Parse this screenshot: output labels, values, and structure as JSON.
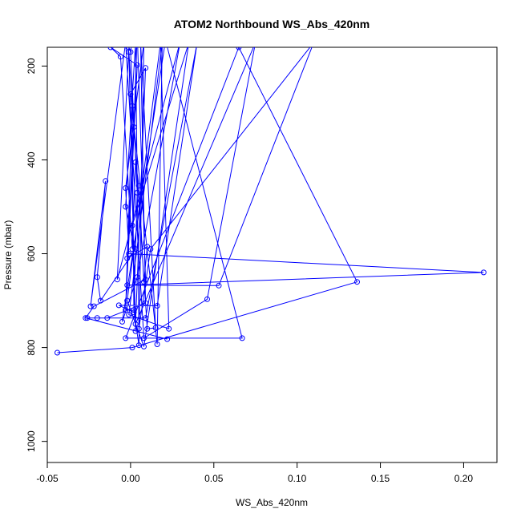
{
  "chart_data": {
    "type": "line",
    "title": "ATOM2 Northbound WS_Abs_420nm",
    "xlabel": "WS_Abs_420nm",
    "ylabel": "Pressure (mbar)",
    "xlim": [
      -0.05,
      0.22
    ],
    "ylim": [
      1045,
      160
    ],
    "y_reversed": true,
    "grid": false,
    "x_ticks": [
      -0.05,
      0.0,
      0.05,
      0.1,
      0.15,
      0.2
    ],
    "x_tick_labels": [
      "-0.05",
      "0.00",
      "0.05",
      "0.10",
      "0.15",
      "0.20"
    ],
    "y_ticks": [
      200,
      400,
      600,
      800,
      1000
    ],
    "y_tick_labels": [
      "200",
      "400",
      "600",
      "800",
      "1000"
    ],
    "series": [
      {
        "color": "#0000ff",
        "marker": "open-circle",
        "points": [
          [
            -0.044,
            811
          ],
          [
            0.001,
            800
          ],
          [
            0.136,
            660
          ],
          [
            0.065,
            160
          ],
          [
            -0.003,
            780
          ],
          [
            0.067,
            780
          ],
          [
            0.021,
            145
          ],
          [
            -0.005,
            745
          ],
          [
            0.004,
            650
          ],
          [
            0.03,
            145
          ],
          [
            -0.008,
            655
          ],
          [
            -0.001,
            160
          ],
          [
            0.0,
            170
          ],
          [
            0.004,
            470
          ],
          [
            0.002,
            720
          ],
          [
            0.005,
            795
          ],
          [
            0.008,
            150
          ],
          [
            -0.003,
            460
          ],
          [
            -0.001,
            600
          ],
          [
            0.212,
            640
          ],
          [
            -0.002,
            667
          ],
          [
            0.053,
            668
          ],
          [
            0.11,
            150
          ],
          [
            0.012,
            590
          ],
          [
            0.005,
            760
          ],
          [
            0.003,
            150
          ],
          [
            -0.003,
            500
          ],
          [
            0.003,
            590
          ],
          [
            -0.018,
            700
          ],
          [
            -0.02,
            650
          ],
          [
            -0.015,
            445
          ],
          [
            -0.024,
            712
          ],
          [
            -0.003,
            150
          ],
          [
            0.008,
            780
          ],
          [
            0.046,
            697
          ],
          [
            0.075,
            150
          ],
          [
            0.003,
            750
          ],
          [
            0.009,
            204
          ],
          [
            0.0,
            260
          ],
          [
            0.016,
            793
          ],
          [
            0.019,
            150
          ],
          [
            -0.001,
            730
          ],
          [
            0.023,
            760
          ],
          [
            0.018,
            150
          ],
          [
            -0.002,
            700
          ],
          [
            0.008,
            798
          ],
          [
            0.035,
            150
          ],
          [
            0.001,
            540
          ],
          [
            0.003,
            765
          ],
          [
            -0.001,
            170
          ],
          [
            0.01,
            760
          ],
          [
            0.015,
            758
          ],
          [
            0.006,
            150
          ],
          [
            0.009,
            705
          ],
          [
            -0.014,
            737
          ],
          [
            -0.026,
            737
          ],
          [
            -0.02,
            737
          ],
          [
            0.009,
            737
          ],
          [
            0.04,
            150
          ],
          [
            0.016,
            711
          ],
          [
            -0.007,
            710
          ],
          [
            0.002,
            725
          ],
          [
            0.001,
            285
          ],
          [
            -0.003,
            720
          ],
          [
            0.004,
            198
          ],
          [
            -0.012,
            160
          ],
          [
            -0.006,
            180
          ],
          [
            0.001,
            590
          ],
          [
            0.003,
            405
          ],
          [
            0.005,
            455
          ],
          [
            0.008,
            660
          ],
          [
            0.01,
            585
          ],
          [
            -0.002,
            610
          ],
          [
            0.002,
            330
          ],
          [
            0.004,
            130
          ],
          [
            0.009,
            655
          ],
          [
            -0.022,
            712
          ],
          [
            -0.027,
            737
          ],
          [
            0.022,
            782
          ]
        ]
      }
    ]
  }
}
